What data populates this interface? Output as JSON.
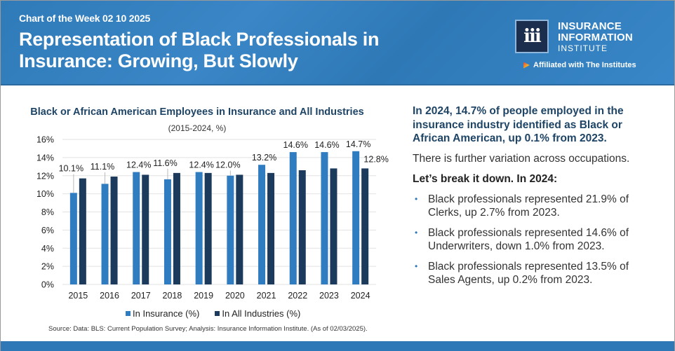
{
  "header": {
    "subtitle": "Chart of the Week 02 10 2025",
    "title": "Representation of Black Professionals in Insurance: Growing, But Slowly",
    "logo": {
      "icon": "iii-logo-icon",
      "glyph": "iii",
      "line1": "INSURANCE",
      "line2": "INFORMATION",
      "line3": "INSTITUTE"
    },
    "affiliation": "Affiliated with The Institutes"
  },
  "chart_data": {
    "type": "bar",
    "title": "Black or African American Employees in Insurance and All Industries",
    "subtitle": "(2015-2024, %)",
    "xlabel": "",
    "ylabel": "",
    "ylim": [
      0,
      16
    ],
    "yticks": [
      0,
      2,
      4,
      6,
      8,
      10,
      12,
      14,
      16
    ],
    "ytick_labels": [
      "0%",
      "2%",
      "4%",
      "6%",
      "8%",
      "10%",
      "12%",
      "14%",
      "16%"
    ],
    "grid": true,
    "legend_position": "bottom",
    "categories": [
      "2015",
      "2016",
      "2017",
      "2018",
      "2019",
      "2020",
      "2021",
      "2022",
      "2023",
      "2024"
    ],
    "series": [
      {
        "name": "In Insurance (%)",
        "color": "#2f7cc0",
        "values": [
          10.1,
          11.1,
          12.4,
          11.6,
          12.4,
          12.0,
          13.2,
          14.6,
          14.6,
          14.7
        ],
        "labels": [
          "10.1%",
          "11.1%",
          "12.4%",
          "11.6%",
          "12.4%",
          "12.0%",
          "13.2%",
          "14.6%",
          "14.6%",
          "14.7%"
        ]
      },
      {
        "name": "In All Industries (%)",
        "color": "#1b3a5c",
        "values": [
          11.7,
          11.9,
          12.1,
          12.3,
          12.3,
          12.1,
          12.3,
          12.6,
          12.8,
          12.8
        ],
        "labels": [
          "",
          "",
          "",
          "",
          "",
          "",
          "",
          "",
          "",
          "12.8%"
        ]
      }
    ],
    "source": "Source: Data: BLS: Current Population Survey; Analysis: Insurance Information Institute. (As of 02/03/2025)."
  },
  "commentary": {
    "headline": "In 2024, 14.7% of people employed in the insurance industry identified as Black or African American, up 0.1% from 2023.",
    "paragraph": "There is further variation across occupations.",
    "lead": "Let’s break it down. In 2024:",
    "bullets": [
      "Black professionals represented 21.9% of Clerks, up 2.7% from 2023.",
      "Black professionals represented 14.6% of Underwriters, down 1.0% from 2023.",
      "Black professionals represented 13.5% of Sales Agents, up 0.2% from 2023."
    ],
    "bullet_glyph": "•"
  },
  "colors": {
    "header_blue": "#3383c4",
    "navy": "#1e4466",
    "insurance_bar": "#2f7cc0",
    "industries_bar": "#1b3a5c"
  }
}
